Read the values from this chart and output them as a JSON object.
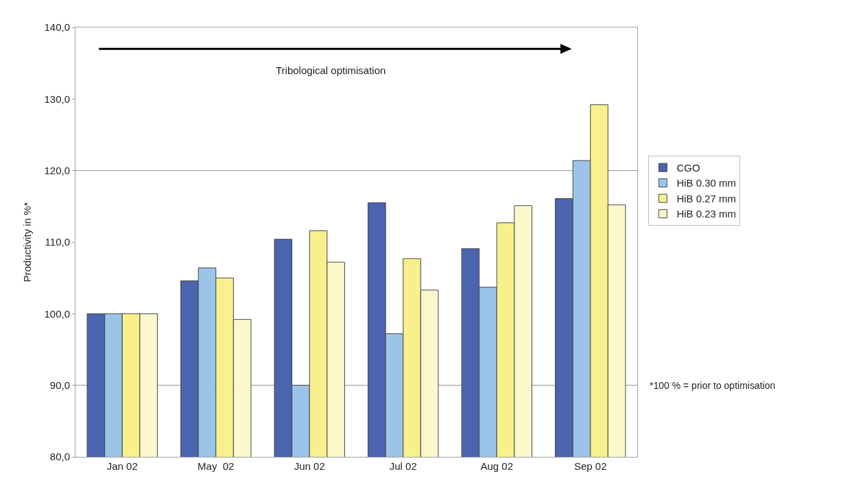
{
  "chart_data": {
    "type": "bar",
    "ylabel": "Productivity in %*",
    "categories": [
      "Jan 02",
      "May  02",
      "Jun 02",
      "Jul 02",
      "Aug 02",
      "Sep 02"
    ],
    "series": [
      {
        "name": "CGO",
        "color": "#4a64b0",
        "values": [
          100,
          104.6,
          110.4,
          115.5,
          109.1,
          116.1
        ]
      },
      {
        "name": "HiB 0.30 mm",
        "color": "#9cc4e8",
        "values": [
          100,
          106.4,
          90.0,
          97.2,
          103.7,
          121.4
        ]
      },
      {
        "name": "HiB 0.27 mm",
        "color": "#f8f08c",
        "values": [
          100,
          105.0,
          111.6,
          107.7,
          112.7,
          129.2
        ]
      },
      {
        "name": "HiB 0.23 mm",
        "color": "#fcf8cc",
        "values": [
          100,
          99.2,
          107.2,
          103.3,
          115.1,
          115.2
        ]
      }
    ],
    "ylim": [
      80,
      140
    ],
    "yticks": [
      {
        "value": 80,
        "label": "80,0"
      },
      {
        "value": 90,
        "label": "90,0"
      },
      {
        "value": 100,
        "label": "100,0"
      },
      {
        "value": 110,
        "label": "110,0"
      },
      {
        "value": 120,
        "label": "120,0"
      },
      {
        "value": 130,
        "label": "130,0"
      },
      {
        "value": 140,
        "label": "140,0"
      }
    ],
    "ref_lines": [
      {
        "axis": "y",
        "value": 90,
        "color": "#909090"
      },
      {
        "axis": "y",
        "value": 120,
        "color": "#909090"
      }
    ],
    "annotations": [
      "Tribological optimisation",
      "*100 % = prior to optimisation"
    ],
    "legend": "right"
  }
}
